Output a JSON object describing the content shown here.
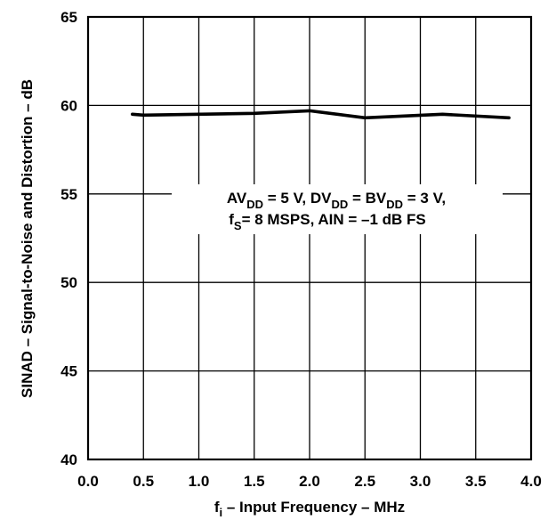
{
  "chart_data": {
    "type": "line",
    "title": "",
    "xlabel": {
      "main": "f",
      "sub": "i",
      "rest": " – Input Frequency – MHz"
    },
    "ylabel": "SINAD – Signal-to-Noise and Distortion – dB",
    "xlim": [
      0.0,
      4.0
    ],
    "ylim": [
      40,
      65
    ],
    "x_ticks": [
      "0.0",
      "0.5",
      "1.0",
      "1.5",
      "2.0",
      "2.5",
      "3.0",
      "3.5",
      "4.0"
    ],
    "y_ticks": [
      "40",
      "45",
      "50",
      "55",
      "60",
      "65"
    ],
    "grid": true,
    "series": [
      {
        "x": [
          0.4,
          0.5,
          1.0,
          1.5,
          2.0,
          2.5,
          3.2,
          3.8
        ],
        "y": [
          59.5,
          59.45,
          59.5,
          59.55,
          59.7,
          59.3,
          59.5,
          59.3
        ]
      }
    ],
    "annotation": {
      "line1": {
        "a": "AV",
        "a_sub": "DD",
        "b": " = 5 V, DV",
        "b_sub": "DD",
        "c": " = BV",
        "c_sub": "DD",
        "d": " = 3 V,"
      },
      "line2": {
        "a": "f",
        "a_sub": "S",
        "b": "= 8 MSPS, AIN = –1 dB FS"
      }
    }
  }
}
